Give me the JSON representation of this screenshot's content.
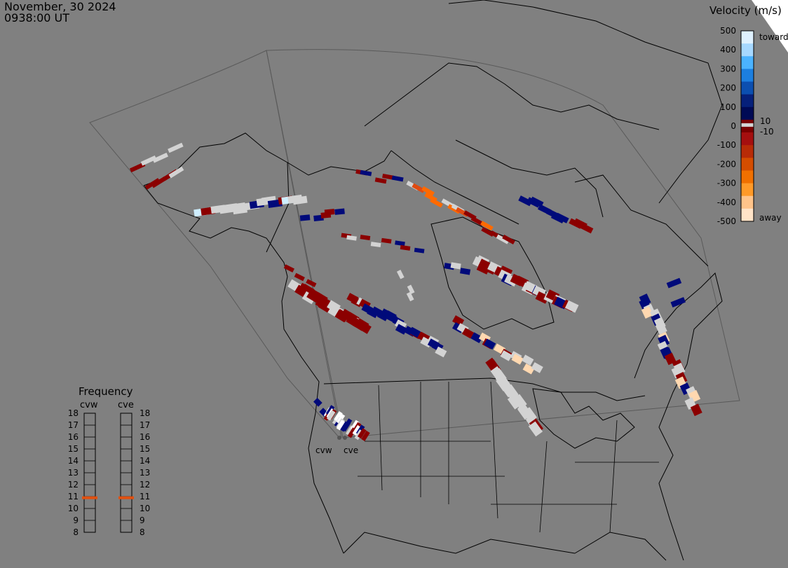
{
  "header": {
    "date": "November, 30 2024",
    "time": "0938:00 UT"
  },
  "velocity_scale": {
    "title": "Velocity (m/s)",
    "ticks": [
      "500",
      "400",
      "300",
      "200",
      "100",
      "0",
      "-100",
      "-200",
      "-300",
      "-400",
      "-500"
    ],
    "inner_labels": [
      "10",
      "-10"
    ],
    "toward_label": "toward",
    "away_label": "away",
    "colors": [
      "#dff1ff",
      "#a6d8ff",
      "#4bb3ff",
      "#1c7fe0",
      "#0c4fb0",
      "#06207a",
      "#000a55",
      "#7a0000",
      "#a50f0f",
      "#b82b07",
      "#d44d00",
      "#f07000",
      "#ff9a28",
      "#ffc48a",
      "#ffe4c8"
    ],
    "ground_scatter_color": "#d3d3d3"
  },
  "frequency": {
    "title": "Frequency",
    "radars": [
      "cvw",
      "cve"
    ],
    "ticks": [
      "18",
      "17",
      "16",
      "15",
      "14",
      "13",
      "12",
      "11",
      "10",
      "9",
      "8"
    ],
    "value_mhz": [
      10.9,
      10.9
    ],
    "marker_color": "#e05010"
  },
  "radar_sites": [
    "cvw",
    "cve"
  ]
}
